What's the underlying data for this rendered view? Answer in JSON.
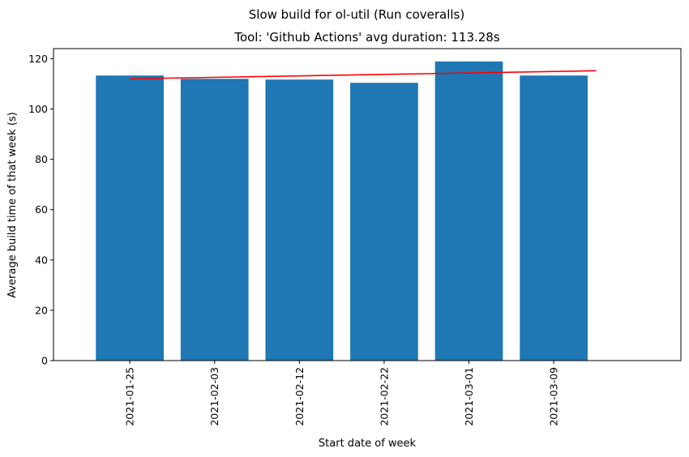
{
  "chart_data": {
    "type": "bar",
    "suptitle": "Slow build for ol-util (Run coveralls)",
    "title": "Tool: 'Github Actions' avg duration: 113.28s",
    "xlabel": "Start date of week",
    "ylabel": "Average build time of that week (s)",
    "categories": [
      "2021-01-25",
      "2021-02-03",
      "2021-02-12",
      "2021-02-22",
      "2021-03-01",
      "2021-03-09"
    ],
    "values": [
      113.3,
      112.0,
      111.7,
      110.4,
      118.9,
      113.3
    ],
    "ylim": [
      0,
      124
    ],
    "yticks": [
      0,
      20,
      40,
      60,
      80,
      100,
      120
    ],
    "bar_color": "#1f77b4",
    "trend_line": {
      "color": "#ff0000",
      "start": {
        "x": "2021-01-25",
        "y": 112.0
      },
      "end_y": 115.2
    },
    "grid": false,
    "legend": "none"
  }
}
